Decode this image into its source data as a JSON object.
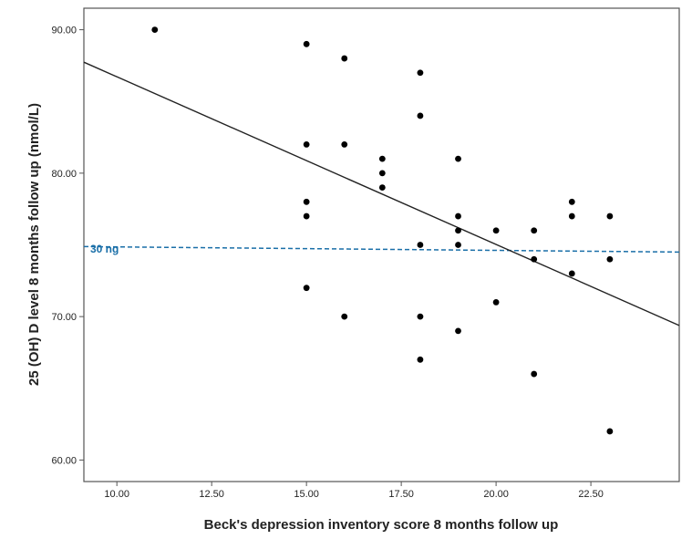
{
  "chart_data": {
    "type": "scatter",
    "title": "",
    "xlabel": "Beck's depression inventory score 8 months follow up",
    "ylabel": "25 (OH) D level 8 months follow up (nmol/L)",
    "xlim": [
      9.13,
      24.83
    ],
    "ylim": [
      58.5,
      91.5
    ],
    "xticks": [
      "10.00",
      "12.50",
      "15.00",
      "17.50",
      "20.00",
      "22.50"
    ],
    "xtick_values": [
      10,
      12.5,
      15,
      17.5,
      20,
      22.5
    ],
    "yticks": [
      "60.00",
      "70.00",
      "80.00",
      "90.00"
    ],
    "ytick_values": [
      60,
      70,
      80,
      90
    ],
    "grid": false,
    "points": [
      [
        11,
        90
      ],
      [
        15,
        89
      ],
      [
        15,
        82
      ],
      [
        15,
        78
      ],
      [
        15,
        77
      ],
      [
        15,
        72
      ],
      [
        16,
        88
      ],
      [
        16,
        82
      ],
      [
        16,
        70
      ],
      [
        17,
        81
      ],
      [
        17,
        80
      ],
      [
        17,
        79
      ],
      [
        18,
        87
      ],
      [
        18,
        84
      ],
      [
        18,
        75
      ],
      [
        18,
        70
      ],
      [
        18,
        67
      ],
      [
        19,
        81
      ],
      [
        19,
        77
      ],
      [
        19,
        76
      ],
      [
        19,
        75
      ],
      [
        19,
        69
      ],
      [
        20,
        76
      ],
      [
        20,
        71
      ],
      [
        21,
        76
      ],
      [
        21,
        74
      ],
      [
        21,
        66
      ],
      [
        22,
        78
      ],
      [
        22,
        77
      ],
      [
        22,
        73
      ],
      [
        23,
        77
      ],
      [
        23,
        74
      ],
      [
        23,
        62
      ]
    ],
    "fit_line": {
      "slope": -1.169,
      "intercept": 98.41
    },
    "reference_line": {
      "label": "30 ng",
      "y_start": 74.88,
      "y_end": 74.5,
      "color": "#1a6fa8"
    },
    "point_color": "#000000",
    "line_color": "#222222"
  }
}
